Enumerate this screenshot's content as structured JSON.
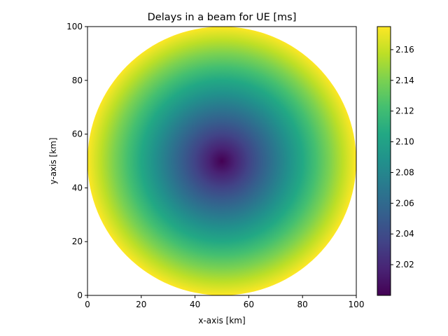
{
  "chart_data": {
    "type": "heatmap",
    "title": "Delays in a beam for UE [ms]",
    "xlabel": "x-axis [km]",
    "ylabel": "y-axis [km]",
    "xlim": [
      0,
      100
    ],
    "ylim": [
      0,
      100
    ],
    "x_ticks": [
      0,
      20,
      40,
      60,
      80,
      100
    ],
    "y_ticks": [
      0,
      20,
      40,
      60,
      80,
      100
    ],
    "grid": false,
    "colormap": "viridis",
    "field": {
      "shape": "disk",
      "center": [
        50,
        50
      ],
      "radius": 50,
      "value_at_center": 2.0,
      "value_at_edge": 2.175
    },
    "colorbar": {
      "min": 2.0,
      "max": 2.175,
      "ticks": [
        2.02,
        2.04,
        2.06,
        2.08,
        2.1,
        2.12,
        2.14,
        2.16
      ],
      "tick_labels": [
        "2.02",
        "2.04",
        "2.06",
        "2.08",
        "2.10",
        "2.12",
        "2.14",
        "2.16"
      ]
    }
  }
}
